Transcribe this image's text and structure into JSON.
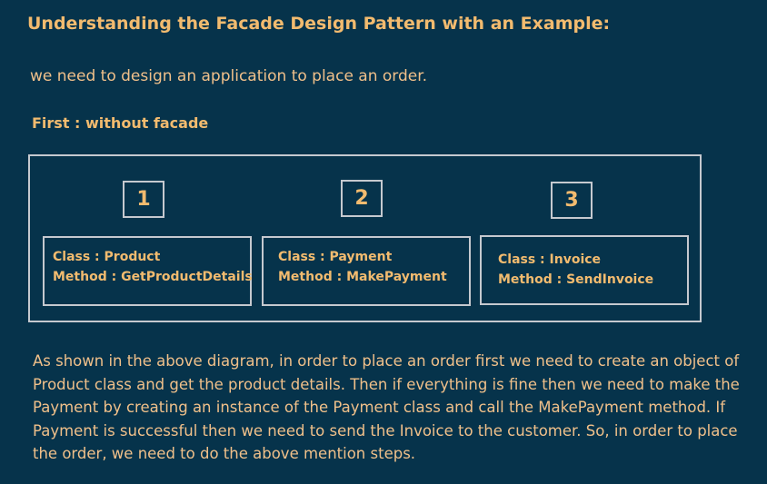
{
  "title": "Understanding the Facade Design Pattern with an Example:",
  "intro": "we need to design an application to place an order.",
  "subheading": "First : without facade",
  "diagram": {
    "steps": [
      {
        "number": "1",
        "class_line": "Class : Product",
        "method_line": "Method : GetProductDetails"
      },
      {
        "number": "2",
        "class_line": "Class : Payment",
        "method_line": "Method : MakePayment"
      },
      {
        "number": "3",
        "class_line": "Class : Invoice",
        "method_line": "Method : SendInvoice"
      }
    ]
  },
  "description": "As shown in the above diagram, in order to place an order first we need to create an object of Product class and get the product details. Then if everything is fine then we need to make the Payment by creating an instance of the Payment class and call the MakePayment method. If Payment is successful then we need to send the Invoice to the customer. So, in order to place the order, we need to do the above mention steps.",
  "colors": {
    "background": "#06334b",
    "heading": "#f2bb6f",
    "text": "#f0c08a",
    "border": "#c5c9cf"
  }
}
